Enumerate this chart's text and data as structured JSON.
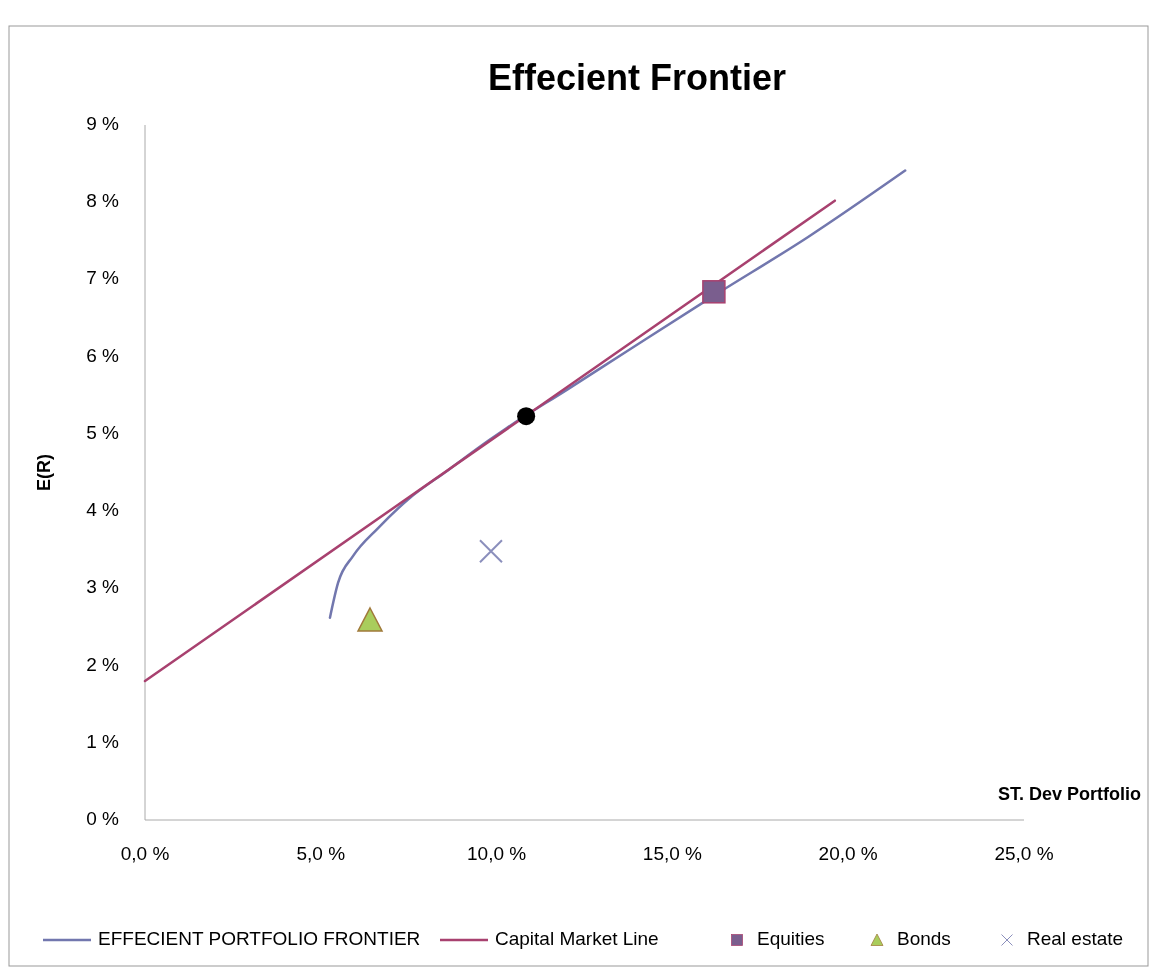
{
  "chart_data": {
    "type": "line",
    "title": "Effecient Frontier",
    "xlabel": "ST. Dev Portfolio",
    "ylabel": "E(R)",
    "xlim": [
      0,
      25
    ],
    "ylim": [
      0,
      9
    ],
    "xticks": [
      {
        "value": 0,
        "label": "0,0 %"
      },
      {
        "value": 5,
        "label": "5,0 %"
      },
      {
        "value": 10,
        "label": "10,0 %"
      },
      {
        "value": 15,
        "label": "15,0 %"
      },
      {
        "value": 20,
        "label": "20,0 %"
      },
      {
        "value": 25,
        "label": "25,0 %"
      }
    ],
    "yticks": [
      {
        "value": 0,
        "label": "0 %"
      },
      {
        "value": 1,
        "label": "1 %"
      },
      {
        "value": 2,
        "label": "2 %"
      },
      {
        "value": 3,
        "label": "3 %"
      },
      {
        "value": 4,
        "label": "4 %"
      },
      {
        "value": 5,
        "label": "5 %"
      },
      {
        "value": 6,
        "label": "6 %"
      },
      {
        "value": 7,
        "label": "7 %"
      },
      {
        "value": 8,
        "label": "8 %"
      },
      {
        "value": 9,
        "label": "9 %"
      }
    ],
    "grid": false,
    "legend": "bottom",
    "series": [
      {
        "name": "EFFECIENT PORTFOLIO FRONTIER",
        "color": "#7277ae",
        "marker": "none",
        "x": [
          5.26,
          5.49,
          5.92,
          6.63,
          7.48,
          8.62,
          9.76,
          10.3,
          12.03,
          13.74,
          16.18,
          18.86,
          21.62
        ],
        "values": [
          2.62,
          3.07,
          3.42,
          3.78,
          4.15,
          4.53,
          4.91,
          5.08,
          5.58,
          6.08,
          6.79,
          7.55,
          8.41
        ]
      },
      {
        "name": "Capital Market Line",
        "color": "#a8416f",
        "marker": "none",
        "x": [
          0,
          19.62
        ],
        "values": [
          1.8,
          8.02
        ]
      },
      {
        "name": "Equities",
        "type": "scatter",
        "color": "#7a5e8e",
        "marker": "square",
        "x": [
          16.18
        ],
        "values": [
          6.84
        ]
      },
      {
        "name": "Bonds",
        "type": "scatter",
        "color": "#a9cd5c",
        "marker": "triangle",
        "x": [
          6.4
        ],
        "values": [
          2.59
        ]
      },
      {
        "name": "Real estate",
        "type": "scatter",
        "color": "#8b8fbc",
        "marker": "cross",
        "x": [
          9.84
        ],
        "values": [
          3.48
        ]
      },
      {
        "type": "scatter",
        "color": "#000000",
        "marker": "circle",
        "x": [
          10.84
        ],
        "values": [
          5.23
        ]
      }
    ]
  }
}
